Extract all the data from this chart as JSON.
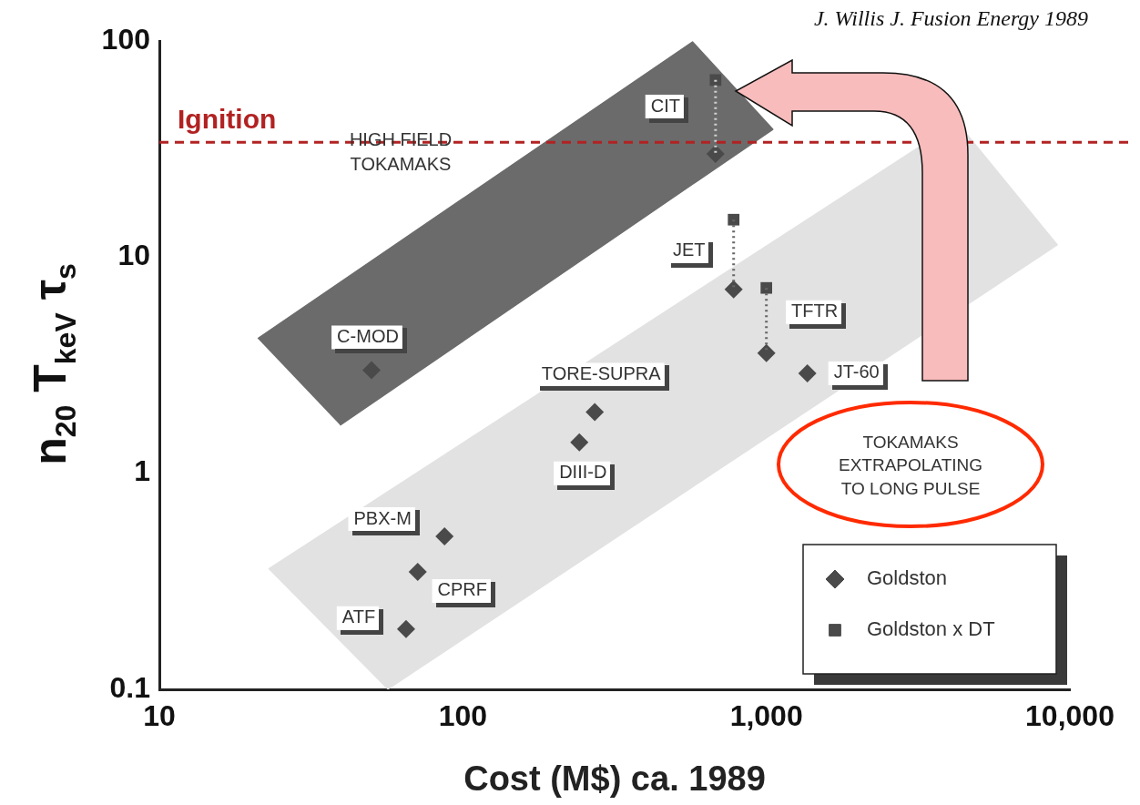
{
  "chart_data": {
    "type": "scatter",
    "xlabel": "Cost (M$) ca. 1989",
    "ylabel": "n$_{20}$ T$_{keV}$ τ$_{s}$",
    "log": "xy",
    "xlim": [
      10,
      10000
    ],
    "ylim": [
      0.1,
      100
    ],
    "xticks": [
      10,
      100,
      {
        "value": 1000,
        "label": "1,000"
      },
      {
        "value": 10000,
        "label": "10,000"
      }
    ],
    "yticks": [
      0.1,
      1,
      10,
      100
    ],
    "grid": false,
    "legend": "bottom right",
    "series": [
      {
        "type": "area",
        "color": "#e2e2e2",
        "x": [
          22.9,
          4250,
          9080,
          56.4
        ],
        "values": [
          0.36,
          42,
          11.4,
          0.1
        ]
      },
      {
        "type": "area",
        "color": "#6b6b6b",
        "x": [
          21.1,
          571,
          1050,
          39.4
        ],
        "values": [
          4.2,
          99,
          39,
          1.67
        ]
      },
      {
        "type": "line",
        "color": "#666666",
        "marker": "none",
        "line_style": "dotted",
        "x": [
          780,
          780
        ],
        "values": [
          14.9,
          7.1
        ]
      },
      {
        "type": "line",
        "color": "#666666",
        "marker": "none",
        "line_style": "dotted",
        "x": [
          1000,
          1000
        ],
        "values": [
          7.2,
          3.6
        ]
      },
      {
        "type": "line",
        "color": "#d0d0d0",
        "marker": "none",
        "line_style": "dotted",
        "x": [
          680,
          680
        ],
        "values": [
          66,
          30
        ]
      },
      {
        "name": "Goldston",
        "color": "#4a4a4a",
        "marker": "diamond",
        "x": [
          50,
          272,
          242,
          87,
          71,
          65,
          780,
          1000,
          1365,
          680
        ],
        "values": [
          3,
          1.92,
          1.39,
          0.51,
          0.35,
          0.19,
          7.1,
          3.6,
          2.9,
          30
        ]
      },
      {
        "name": "Goldston x DT",
        "color": "#4a4a4a",
        "marker": "square",
        "x": [
          780,
          1000,
          680
        ],
        "values": [
          14.9,
          7.2,
          66
        ]
      }
    ],
    "ref_lines": [
      {
        "axis": "y",
        "value": 34,
        "label": "Ignition",
        "color": "#b22222",
        "line_style": "dashed"
      }
    ],
    "annotations": [
      "J. Willis J. Fusion Energy 1989",
      "HIGH FIELD\nTOKAMAKS",
      "TOKAMAKS\nEXTRAPOLATING\nTO LONG PULSE",
      {
        "text": "C-MOD",
        "x": 50,
        "y": 3
      },
      {
        "text": "TORE-SUPRA",
        "x": 272,
        "y": 1.92
      },
      {
        "text": "DIII-D",
        "x": 242,
        "y": 1.39
      },
      {
        "text": "PBX-M",
        "x": 87,
        "y": 0.51
      },
      {
        "text": "CPRF",
        "x": 71,
        "y": 0.35
      },
      {
        "text": "ATF",
        "x": 65,
        "y": 0.19
      },
      {
        "text": "JET",
        "x": 780,
        "y": 7.1
      },
      {
        "text": "TFTR",
        "x": 1000,
        "y": 3.6
      },
      {
        "text": "JT-60",
        "x": 1365,
        "y": 2.9
      },
      {
        "text": "CIT",
        "x": 680,
        "y": 30
      }
    ]
  }
}
